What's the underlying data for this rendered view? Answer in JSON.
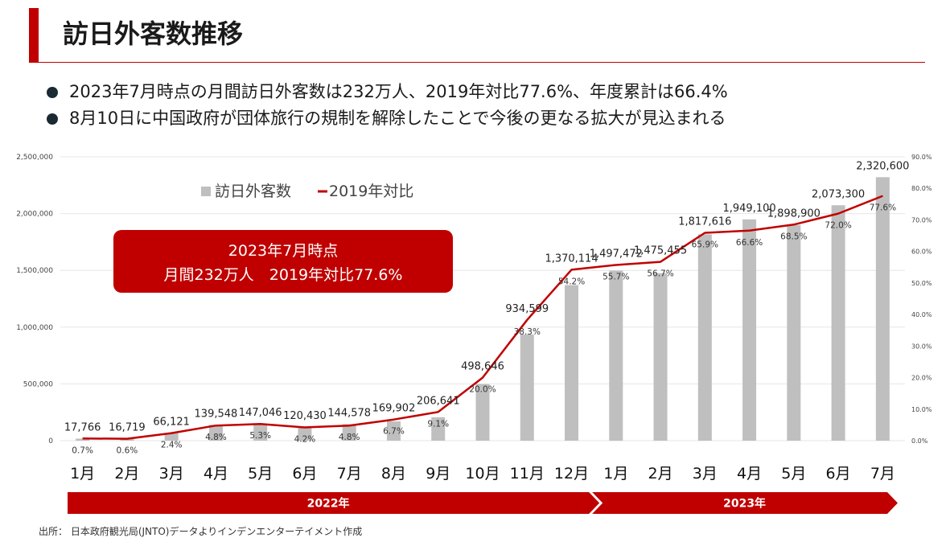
{
  "title": "訪日外客数推移",
  "bullets": [
    "2023年7月時点の月間訪日外客数は232万人、2019年対比77.6%、年度累計は66.4%",
    "8月10日に中国政府が団体旅行の規制を解除したことで今後の更なる拡大が見込まれる"
  ],
  "callout": {
    "line1": "2023年7月時点",
    "line2": "月間232万人　2019年対比77.6%"
  },
  "colors": {
    "accent": "#c00000",
    "bar": "#bfbfbf",
    "line": "#c00000"
  },
  "source": "出所：  日本政府観光局(JNTO)データよりインデンエンターテイメント作成",
  "chart_data": {
    "type": "bar",
    "categories": [
      "1月",
      "2月",
      "3月",
      "4月",
      "5月",
      "6月",
      "7月",
      "8月",
      "9月",
      "10月",
      "11月",
      "12月",
      "1月",
      "2月",
      "3月",
      "4月",
      "5月",
      "6月",
      "7月"
    ],
    "series": [
      {
        "name": "訪日外客数",
        "type": "bar",
        "axis": "left",
        "values": [
          17766,
          16719,
          66121,
          139548,
          147046,
          120430,
          144578,
          169902,
          206641,
          498646,
          934599,
          1370114,
          1497472,
          1475455,
          1817616,
          1949100,
          1898900,
          2073300,
          2320600
        ],
        "labels": [
          "17,766",
          "16,719",
          "66,121",
          "139,548",
          "147,046",
          "120,430",
          "144,578",
          "169,902",
          "206,641",
          "498,646",
          "934,599",
          "1,370,114",
          "1,497,472",
          "1,475,455",
          "1,817,616",
          "1,949,100",
          "1,898,900",
          "2,073,300",
          "2,320,600"
        ]
      },
      {
        "name": "2019年対比",
        "type": "line",
        "axis": "right",
        "values": [
          0.7,
          0.6,
          2.4,
          4.8,
          5.3,
          4.2,
          4.8,
          6.7,
          9.1,
          20.0,
          38.3,
          54.2,
          55.7,
          56.7,
          65.9,
          66.6,
          68.5,
          72.0,
          77.6
        ],
        "labels": [
          "0.7%",
          "0.6%",
          "2.4%",
          "4.8%",
          "5.3%",
          "4.2%",
          "4.8%",
          "6.7%",
          "9.1%",
          "20.0%",
          "38.3%",
          "54.2%",
          "55.7%",
          "56.7%",
          "65.9%",
          "66.6%",
          "68.5%",
          "72.0%",
          "77.6%"
        ]
      }
    ],
    "y_left": {
      "ylim": [
        0,
        2500000
      ],
      "ticks": [
        0,
        500000,
        1000000,
        1500000,
        2000000,
        2500000
      ],
      "tick_labels": [
        "0",
        "500,000",
        "1,000,000",
        "1,500,000",
        "2,000,000",
        "2,500,000"
      ]
    },
    "y_right": {
      "ylim": [
        0,
        90
      ],
      "ticks": [
        0,
        10,
        20,
        30,
        40,
        50,
        60,
        70,
        80,
        90
      ],
      "tick_labels": [
        "0.0%",
        "10.0%",
        "20.0%",
        "30.0%",
        "40.0%",
        "50.0%",
        "60.0%",
        "70.0%",
        "80.0%",
        "90.0%"
      ]
    },
    "legend": {
      "position": "top-left",
      "entries": [
        "訪日外客数",
        "2019年対比"
      ]
    },
    "year_groups": [
      {
        "label": "2022年",
        "from": 0,
        "to": 11
      },
      {
        "label": "2023年",
        "from": 12,
        "to": 18
      }
    ],
    "grid": true
  }
}
